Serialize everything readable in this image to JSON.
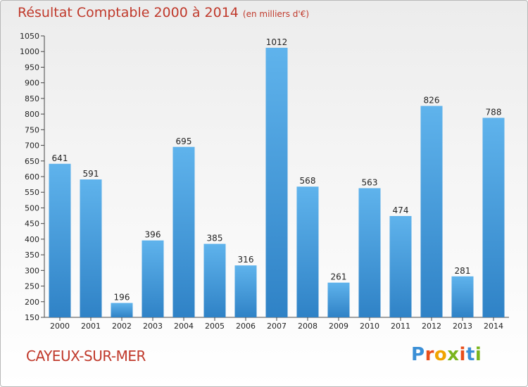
{
  "header": {
    "title": "Résultat Comptable 2000 à 2014",
    "subtitle": "(en milliers d'€)"
  },
  "footer": {
    "city": "CAYEUX-SUR-MER",
    "brand_letters": [
      "P",
      "r",
      "o",
      "x",
      "i",
      "t",
      "i"
    ],
    "brand_colors": [
      "#3a8fd6",
      "#e94e1b",
      "#f0a400",
      "#7ab51d",
      "#e94e1b",
      "#3a8fd6",
      "#7ab51d"
    ]
  },
  "colors": {
    "bar": "#5aaee8",
    "bar_dark": "#2d80c4",
    "accent": "#c0392b"
  },
  "chart_data": {
    "type": "bar",
    "categories": [
      "2000",
      "2001",
      "2002",
      "2003",
      "2004",
      "2005",
      "2006",
      "2007",
      "2008",
      "2009",
      "2010",
      "2011",
      "2012",
      "2013",
      "2014"
    ],
    "values": [
      641,
      591,
      196,
      396,
      695,
      385,
      316,
      1012,
      568,
      261,
      563,
      474,
      826,
      281,
      788
    ],
    "ylim": [
      150,
      1050
    ],
    "yticks": [
      150,
      200,
      250,
      300,
      350,
      400,
      450,
      500,
      550,
      600,
      650,
      700,
      750,
      800,
      850,
      900,
      950,
      1000,
      1050
    ],
    "grid": false,
    "xlabel": "",
    "ylabel": ""
  }
}
